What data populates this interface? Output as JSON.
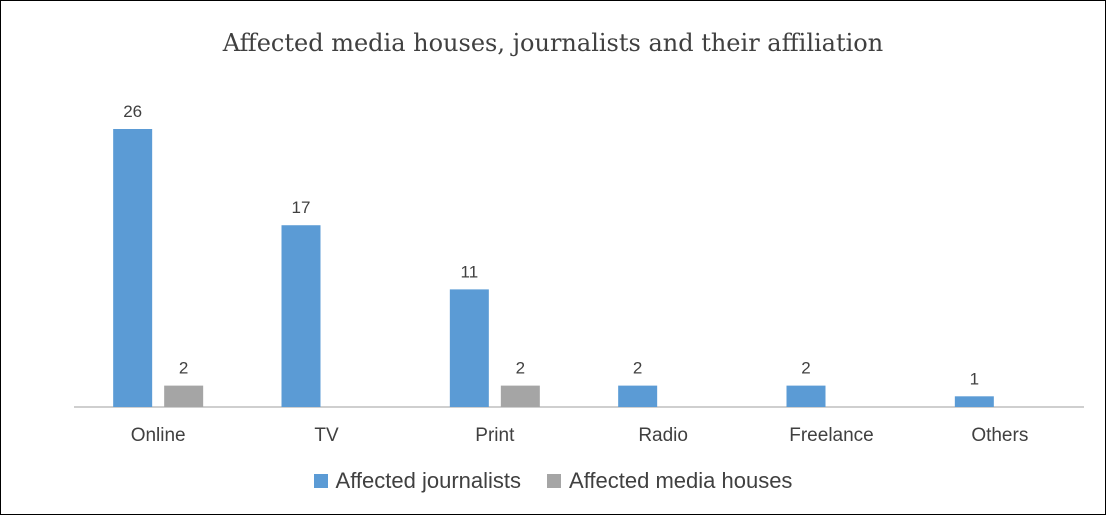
{
  "chart_data": {
    "type": "bar",
    "title": "Affected media houses, journalists and their affiliation",
    "xlabel": "",
    "ylabel": "",
    "categories": [
      "Online",
      "TV",
      "Print",
      "Radio",
      "Freelance",
      "Others"
    ],
    "series": [
      {
        "name": "Affected journalists",
        "values": [
          26,
          17,
          11,
          2,
          2,
          1
        ],
        "color": "#5b9bd5"
      },
      {
        "name": "Affected media houses",
        "values": [
          2,
          null,
          2,
          null,
          null,
          null
        ],
        "color": "#a5a5a5"
      }
    ],
    "ylim": [
      0,
      26
    ],
    "grid": false,
    "legend_position": "bottom"
  }
}
